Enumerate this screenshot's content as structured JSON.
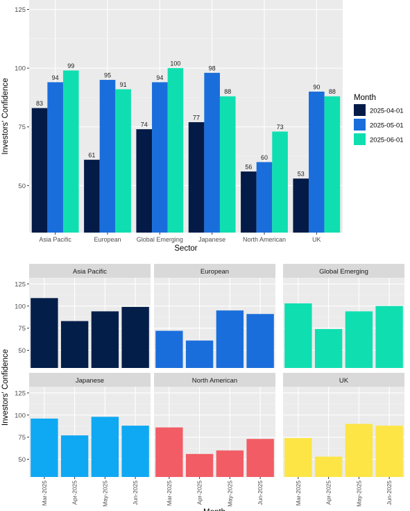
{
  "chart_data": [
    {
      "type": "bar",
      "title": "",
      "xlabel": "Sector",
      "ylabel": "Investors' Confidence",
      "categories": [
        "Asia Pacific",
        "European",
        "Global Emerging",
        "Japanese",
        "North American",
        "UK"
      ],
      "series": [
        {
          "name": "2025-04-01",
          "color": "#041b47",
          "values": [
            83,
            61,
            74,
            77,
            56,
            53
          ]
        },
        {
          "name": "2025-05-01",
          "color": "#1a6edb",
          "values": [
            94,
            95,
            94,
            98,
            60,
            90
          ]
        },
        {
          "name": "2025-06-01",
          "color": "#0fdfb0",
          "values": [
            99,
            91,
            100,
            88,
            73,
            88
          ]
        }
      ],
      "ylim": [
        30,
        129
      ],
      "yticks": [
        50,
        75,
        100,
        125
      ],
      "grid": true,
      "legend": {
        "title": "Month",
        "position": "right"
      },
      "data_labels": true
    },
    {
      "type": "bar",
      "faceted": true,
      "xlabel": "Month",
      "ylabel": "Investors' Confidence",
      "categories": [
        "Mar-2025",
        "Apr-2025",
        "May-2025",
        "Jun-2025"
      ],
      "ylim": [
        30,
        132
      ],
      "yticks": [
        50,
        75,
        100,
        125
      ],
      "grid": true,
      "series": [
        {
          "name": "Asia Pacific",
          "color": "#041e4a",
          "values": [
            109,
            83,
            94,
            99
          ]
        },
        {
          "name": "European",
          "color": "#1a6edb",
          "values": [
            72,
            61,
            95,
            91
          ]
        },
        {
          "name": "Global Emerging",
          "color": "#0fdfb0",
          "values": [
            103,
            74,
            94,
            100
          ]
        },
        {
          "name": "Japanese",
          "color": "#0fa8f2",
          "values": [
            96,
            77,
            98,
            88
          ]
        },
        {
          "name": "North American",
          "color": "#f25c65",
          "values": [
            86,
            56,
            60,
            73
          ]
        },
        {
          "name": "UK",
          "color": "#fde545",
          "values": [
            74,
            53,
            90,
            88
          ]
        }
      ]
    }
  ]
}
